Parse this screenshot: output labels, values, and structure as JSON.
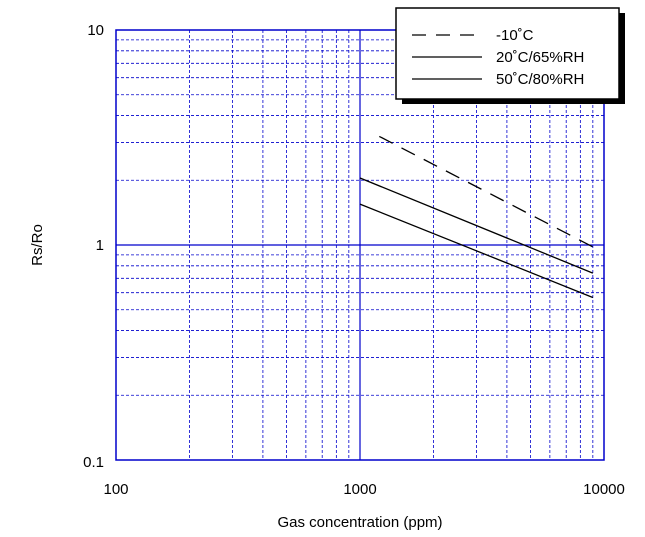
{
  "chart_data": {
    "type": "line",
    "xlabel": "Gas concentration (ppm)",
    "ylabel": "Rs/Ro",
    "xscale": "log",
    "yscale": "log",
    "xlim": [
      100,
      10000
    ],
    "ylim": [
      0.1,
      10
    ],
    "xticks": [
      "100",
      "1000",
      "10000"
    ],
    "yticks": [
      "0.1",
      "1",
      "10"
    ],
    "grid": true,
    "legend_position": "top-right",
    "series": [
      {
        "name": "-10˚C",
        "style": "dashed",
        "x": [
          1200,
          9000
        ],
        "y": [
          3.2,
          0.98
        ]
      },
      {
        "name": "20˚C/65%RH",
        "style": "solid",
        "x": [
          1000,
          9000
        ],
        "y": [
          2.05,
          0.74
        ]
      },
      {
        "name": "50˚C/80%RH",
        "style": "solid",
        "x": [
          1000,
          9000
        ],
        "y": [
          1.55,
          0.57
        ]
      }
    ],
    "colors": {
      "frame": "#0000cc",
      "grid": "#0000cc",
      "line": "#000000"
    }
  }
}
